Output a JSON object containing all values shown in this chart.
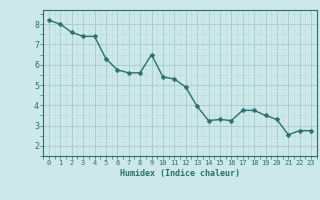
{
  "x": [
    0,
    1,
    2,
    3,
    4,
    5,
    6,
    7,
    8,
    9,
    10,
    11,
    12,
    13,
    14,
    15,
    16,
    17,
    18,
    19,
    20,
    21,
    22,
    23
  ],
  "y": [
    8.2,
    8.0,
    7.6,
    7.4,
    7.4,
    6.3,
    5.75,
    5.6,
    5.6,
    6.5,
    5.4,
    5.3,
    4.9,
    3.95,
    3.25,
    3.3,
    3.25,
    3.75,
    3.75,
    3.5,
    3.3,
    2.55,
    2.75,
    2.75
  ],
  "line_color": "#2d6e6e",
  "marker": "D",
  "marker_size": 2.5,
  "bg_color": "#cce8e8",
  "grid_major_color": "#aacfcf",
  "grid_minor_color": "#bbdada",
  "xlabel": "Humidex (Indice chaleur)",
  "xlim": [
    -0.5,
    23.5
  ],
  "ylim": [
    1.5,
    8.7
  ],
  "yticks": [
    2,
    3,
    4,
    5,
    6,
    7,
    8
  ],
  "xticks": [
    0,
    1,
    2,
    3,
    4,
    5,
    6,
    7,
    8,
    9,
    10,
    11,
    12,
    13,
    14,
    15,
    16,
    17,
    18,
    19,
    20,
    21,
    22,
    23
  ],
  "font_color": "#2d6e6e",
  "tick_color": "#2d6e6e",
  "spine_color": "#2d6e6e",
  "xlabel_fontsize": 6.0,
  "tick_fontsize_x": 5.0,
  "tick_fontsize_y": 6.0
}
